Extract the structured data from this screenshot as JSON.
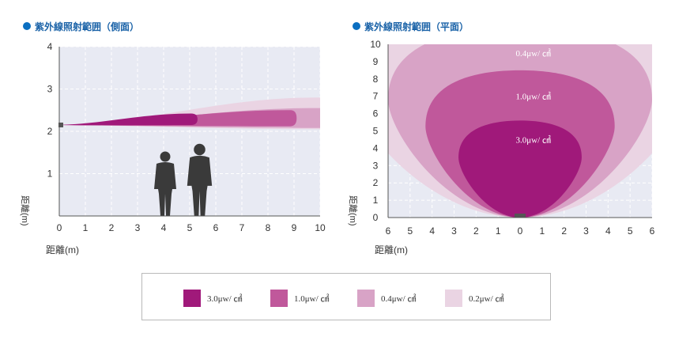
{
  "colors": {
    "level_3_0": "#a0197a",
    "level_1_0": "#c0589b",
    "level_0_4": "#d8a3c6",
    "level_0_2": "#ead4e3",
    "plot_bg": "#e8eaf3",
    "grid": "#ffffff",
    "title_dot": "#0a6fc1",
    "person": "#3a3a3a"
  },
  "legend": {
    "items": [
      {
        "label": "3.0μw/ ㎠",
        "color": "#a0197a"
      },
      {
        "label": "1.0μw/ ㎠",
        "color": "#c0589b"
      },
      {
        "label": "0.4μw/ ㎠",
        "color": "#d8a3c6"
      },
      {
        "label": "0.2μw/ ㎠",
        "color": "#ead4e3"
      }
    ]
  },
  "chart_data": [
    {
      "type": "area",
      "title": "紫外線照射範囲（側面）",
      "xlabel": "距離(m)",
      "ylabel": "距離(m)",
      "xlim": [
        0,
        10
      ],
      "ylim": [
        0,
        4
      ],
      "x_ticks": [
        "0",
        "1",
        "2",
        "3",
        "4",
        "5",
        "6",
        "7",
        "8",
        "9",
        "10"
      ],
      "y_ticks": [
        "1",
        "2",
        "3",
        "4"
      ],
      "grid": true,
      "source": {
        "x": 0,
        "y": 2.15
      },
      "people_x": [
        4,
        5.5
      ],
      "series": [
        {
          "level": "0.2",
          "reach_x": 10,
          "upper_y": 2.8,
          "lower_y": 2.05
        },
        {
          "level": "0.4",
          "reach_x": 10,
          "upper_y": 2.55,
          "lower_y": 2.08
        },
        {
          "level": "1.0",
          "reach_x": 9.1,
          "upper_y": 2.5,
          "lower_y": 2.12
        },
        {
          "level": "3.0",
          "reach_x": 5.3,
          "upper_y": 2.42,
          "lower_y": 2.15
        }
      ]
    },
    {
      "type": "area",
      "title": "紫外線照射範囲（平面）",
      "xlabel": "距離(m)",
      "ylabel": "距離(m)",
      "xlim": [
        -6,
        6
      ],
      "ylim": [
        0,
        10
      ],
      "x_ticks": [
        "6",
        "5",
        "4",
        "3",
        "2",
        "1",
        "0",
        "1",
        "2",
        "3",
        "4",
        "5",
        "6"
      ],
      "y_ticks": [
        "0",
        "1",
        "2",
        "3",
        "4",
        "5",
        "6",
        "7",
        "8",
        "9",
        "10"
      ],
      "grid": true,
      "source": {
        "x": 0,
        "y": 0
      },
      "annotations": [
        {
          "text": "0.4μw/ ㎠",
          "x": 0.6,
          "y": 9.5
        },
        {
          "text": "1.0μw/ ㎠",
          "x": 0.6,
          "y": 7.0
        },
        {
          "text": "3.0μw/ ㎠",
          "x": 0.6,
          "y": 4.5
        }
      ],
      "series": [
        {
          "level": "0.2",
          "half_width": 7.5,
          "top_y": 11.5
        },
        {
          "level": "0.4",
          "half_width": 6.0,
          "top_y": 11.0
        },
        {
          "level": "1.0",
          "half_width": 4.3,
          "top_y": 8.5
        },
        {
          "level": "3.0",
          "half_width": 2.8,
          "top_y": 5.6
        }
      ]
    }
  ]
}
